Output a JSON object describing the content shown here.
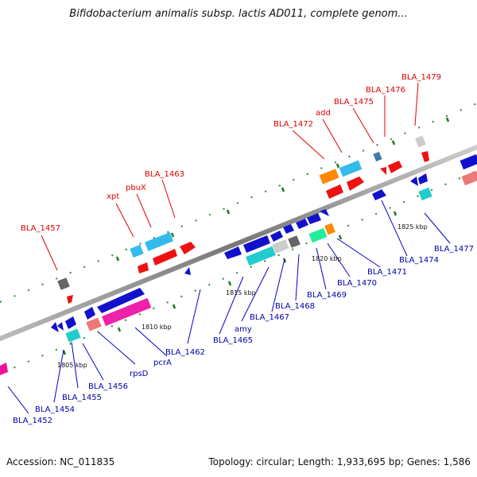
{
  "title": "Bifidobacterium animalis subsp. lactis AD011, complete genom...",
  "footer": {
    "accession": "Accession: NC_011835",
    "summary": "Topology: circular; Length: 1,933,695 bp; Genes: 1,586"
  },
  "colors": {
    "forward_label": "#dd0000",
    "reverse_label": "#0000aa",
    "backbone": "#888888",
    "tick": "#228822"
  },
  "scale_labels": [
    "1805 kbp",
    "1810 kbp",
    "1815 kbp",
    "1820 kbp",
    "1825 kbp"
  ],
  "forward_labels": [
    "BLA_1457",
    "xpt",
    "pbuX",
    "BLA_1463",
    "BLA_1472",
    "add",
    "BLA_1475",
    "BLA_1476",
    "BLA_1479"
  ],
  "reverse_labels": [
    "BLA_1452",
    "BLA_1454",
    "BLA_1455",
    "BLA_1456",
    "rpsD",
    "pcrA",
    "BLA_1462",
    "BLA_1465",
    "amy",
    "BLA_1467",
    "BLA_1468",
    "BLA_1469",
    "BLA_1470",
    "BLA_1471",
    "BLA_1474",
    "BLA_1477"
  ]
}
